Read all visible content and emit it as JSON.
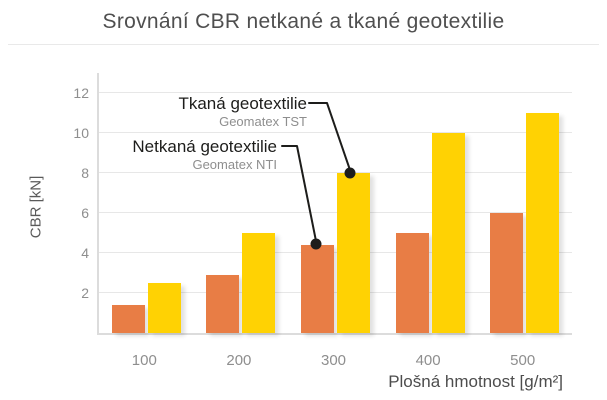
{
  "title": "Srovnání CBR netkané a tkané geotextilie",
  "chart_data": {
    "type": "bar",
    "categories": [
      "100",
      "200",
      "300",
      "400",
      "500"
    ],
    "series": [
      {
        "name": "Netkaná geotextilie",
        "subtitle": "Geomatex NTI",
        "color": "#E87D45",
        "values": [
          1.4,
          2.9,
          4.4,
          5.0,
          6.0
        ]
      },
      {
        "name": "Tkaná geotextilie",
        "subtitle": "Geomatex TST",
        "color": "#FFD203",
        "values": [
          2.5,
          5.0,
          8.0,
          10.0,
          11.0
        ]
      }
    ],
    "xlabel": "Plošná hmotnost [g/m²]",
    "ylabel": "CBR [kN]",
    "ylim": [
      0,
      13
    ],
    "y_ticks": [
      2,
      4,
      6,
      8,
      10,
      12
    ],
    "grid": true,
    "legend_style": "callout-annotations",
    "annotation_targets": [
      "orange bar at 300",
      "yellow bar at 300"
    ]
  },
  "colors": {
    "bar_orange": "#E87D45",
    "bar_yellow": "#FFD203",
    "gridline": "#e7e7e7",
    "axis_line": "#dcdcdc",
    "tick_text": "#8e8e8e",
    "title_text": "#4f4f4f",
    "annotation_text": "#1d1d1b"
  }
}
